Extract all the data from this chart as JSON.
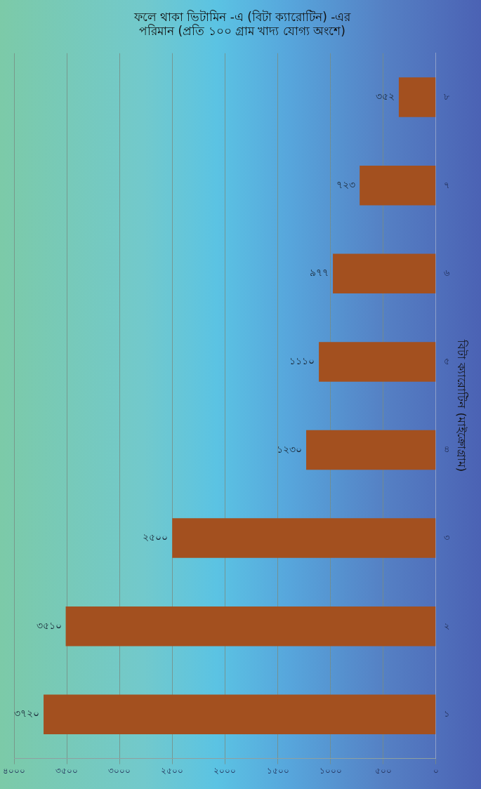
{
  "chart_data": {
    "type": "bar",
    "orientation": "horizontal",
    "title": "ফলে থাকা ভিটামিন -এ (বিটা ক্যারোটিন) -এর পরিমান (প্রতি ১০০ গ্রাম খাদ্য যোগ্য অংশে)",
    "ylabel": "বিটা ক্যারোটিন (মাইক্রোগ্রাম)",
    "categories": [
      "৮",
      "৭",
      "৬",
      "৫",
      "৪",
      "৩",
      "২",
      "১"
    ],
    "values": [
      352,
      723,
      977,
      1110,
      1230,
      2500,
      3510,
      3720
    ],
    "value_labels": [
      "৩৫২",
      "৭২৩",
      "৯৭৭",
      "১১১০",
      "১২৩০",
      "২৫০০",
      "৩৫১০",
      "৩৭২০"
    ],
    "color": "#a3501f",
    "xlim": [
      4000,
      0
    ],
    "xticks": [
      {
        "value": 4000,
        "label": "৪০০০"
      },
      {
        "value": 3500,
        "label": "৩৫০০"
      },
      {
        "value": 3000,
        "label": "৩০০০"
      },
      {
        "value": 2500,
        "label": "২৫০০"
      },
      {
        "value": 2000,
        "label": "২০০০"
      },
      {
        "value": 1500,
        "label": "১৫০০"
      },
      {
        "value": 1000,
        "label": "১০০০"
      },
      {
        "value": 500,
        "label": "৫০০"
      },
      {
        "value": 0,
        "label": "০"
      }
    ],
    "grid": "x",
    "legend": false
  }
}
